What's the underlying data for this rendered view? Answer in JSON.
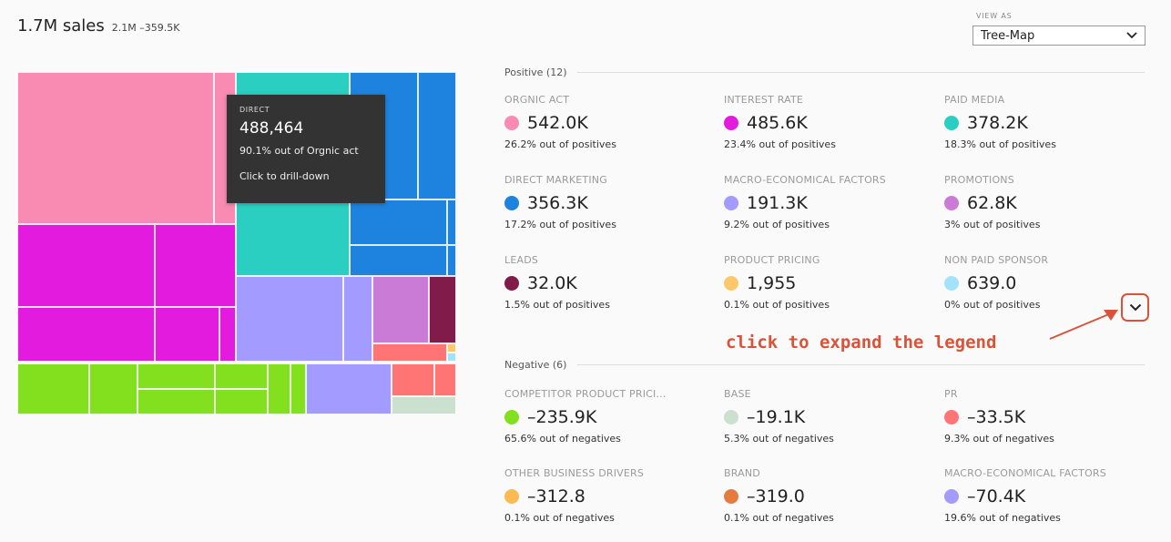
{
  "header": {
    "total": "1.7M sales",
    "range": "2.1M –359.5K"
  },
  "view_as": {
    "label": "VIEW AS",
    "selected": "Tree-Map"
  },
  "tooltip": {
    "label": "DIRECT",
    "value": "488,464",
    "share": "90.1% out of Orgnic act",
    "hint": "Click to drill-down"
  },
  "positive": {
    "title": "Positive (12)",
    "items": [
      {
        "name": "ORGNIC ACT",
        "value": "542.0K",
        "share": "26.2% out of positives",
        "color": "#f98bb3"
      },
      {
        "name": "INTEREST RATE",
        "value": "485.6K",
        "share": "23.4% out of positives",
        "color": "#e31bdf"
      },
      {
        "name": "PAID MEDIA",
        "value": "378.2K",
        "share": "18.3% out of positives",
        "color": "#2acfc1"
      },
      {
        "name": "DIRECT MARKETING",
        "value": "356.3K",
        "share": "17.2% out of positives",
        "color": "#1d83df"
      },
      {
        "name": "MACRO-ECONOMICAL FACTORS",
        "value": "191.3K",
        "share": "9.2% out of positives",
        "color": "#a39bff"
      },
      {
        "name": "PROMOTIONS",
        "value": "62.8K",
        "share": "3% out of positives",
        "color": "#c97bd5"
      },
      {
        "name": "LEADS",
        "value": "32.0K",
        "share": "1.5% out of positives",
        "color": "#801b4a"
      },
      {
        "name": "PRODUCT PRICING",
        "value": "1,955",
        "share": "0.1% out of positives",
        "color": "#fdc86b"
      },
      {
        "name": "NON PAID SPONSOR",
        "value": "639.0",
        "share": "0% out of positives",
        "color": "#a4e2fb"
      }
    ]
  },
  "negative": {
    "title": "Negative (6)",
    "items": [
      {
        "name": "COMPETITOR PRODUCT PRICI...",
        "value": "–235.9K",
        "share": "65.6% out of negatives",
        "color": "#82e01e"
      },
      {
        "name": "BASE",
        "value": "–19.1K",
        "share": "5.3% out of negatives",
        "color": "#cce0cf"
      },
      {
        "name": "PR",
        "value": "–33.5K",
        "share": "9.3% out of negatives",
        "color": "#ff7474"
      },
      {
        "name": "OTHER BUSINESS DRIVERS",
        "value": "–312.8",
        "share": "0.1% out of negatives",
        "color": "#fbbb52"
      },
      {
        "name": "BRAND",
        "value": "–319.0",
        "share": "0.1% out of negatives",
        "color": "#e57c3f"
      },
      {
        "name": "MACRO-ECONOMICAL FACTORS",
        "value": "–70.4K",
        "share": "19.6% out of negatives",
        "color": "#a39bff"
      }
    ]
  },
  "annotation": "click to expand the legend",
  "colors": {
    "accent": "#d9533b",
    "tooltip_bg": "#333333"
  }
}
